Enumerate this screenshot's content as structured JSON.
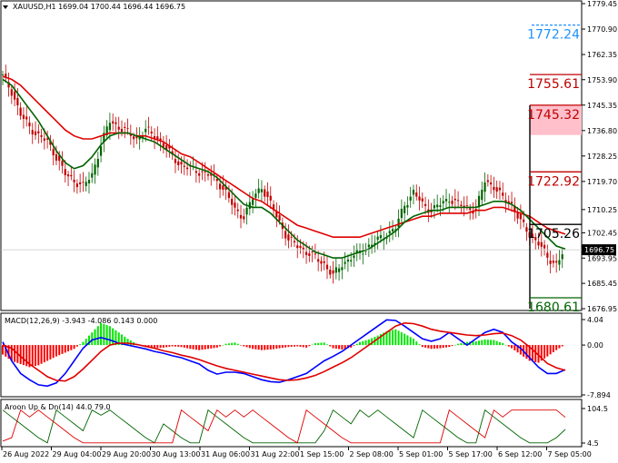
{
  "chart_data": [
    {
      "type": "candlestick",
      "title": "XAUUSD,H1  1699.04 1700.44 1696.44 1696.75",
      "ylim": [
        1676.95,
        1779.45
      ],
      "yticks": [
        "1779.45",
        "1770.90",
        "1762.35",
        "1753.90",
        "1745.35",
        "1736.80",
        "1728.25",
        "1719.70",
        "1710.25",
        "1702.45",
        "1693.95",
        "1685.45",
        "1676.95"
      ],
      "current_price": "1696.75",
      "xticks": [
        "26 Aug 2022",
        "29 Aug 04:00",
        "29 Aug 20:00",
        "30 Aug 13:00",
        "31 Aug 06:00",
        "31 Aug 22:00",
        "1 Sep 15:00",
        "2 Sep 08:00",
        "5 Sep 01:00",
        "5 Sep 17:00",
        "6 Sep 12:00",
        "7 Sep 05:00"
      ],
      "levels": [
        {
          "label": "1772.24",
          "value": 1772.24,
          "color": "#1e90ff"
        },
        {
          "label": "1755.61",
          "value": 1755.61,
          "color": "#c00000"
        },
        {
          "label": "1745.32",
          "value": 1745.32,
          "color": "#c00000"
        },
        {
          "label": "1722.92",
          "value": 1722.92,
          "color": "#c00000"
        },
        {
          "label": "1705.26",
          "value": 1705.26,
          "color": "#000000"
        },
        {
          "label": "1680.61",
          "value": 1680.61,
          "color": "#006400"
        }
      ],
      "close_path": [
        1755,
        1750,
        1742,
        1738,
        1735,
        1733,
        1728,
        1722,
        1720,
        1718,
        1722,
        1732,
        1740,
        1738,
        1736,
        1734,
        1737,
        1735,
        1732,
        1728,
        1725,
        1724,
        1723,
        1722,
        1720,
        1716,
        1710,
        1708,
        1714,
        1718,
        1712,
        1706,
        1700,
        1698,
        1696,
        1694,
        1692,
        1688,
        1692,
        1694,
        1696,
        1698,
        1700,
        1702,
        1704,
        1712,
        1716,
        1712,
        1710,
        1712,
        1714,
        1712,
        1711,
        1710,
        1720,
        1718,
        1714,
        1712,
        1706,
        1702,
        1699,
        1694,
        1692,
        1697
      ],
      "ma_fast": [
        1754,
        1752,
        1748,
        1744,
        1740,
        1735,
        1730,
        1726,
        1724,
        1725,
        1728,
        1732,
        1735,
        1736,
        1736,
        1735,
        1734,
        1733,
        1731,
        1729,
        1727,
        1725,
        1724,
        1723,
        1721,
        1718,
        1715,
        1712,
        1711,
        1711,
        1709,
        1706,
        1703,
        1700,
        1698,
        1696,
        1695,
        1694,
        1694,
        1695,
        1696,
        1697,
        1699,
        1701,
        1703,
        1706,
        1708,
        1709,
        1710,
        1710,
        1711,
        1711,
        1711,
        1711,
        1712,
        1713,
        1713,
        1712,
        1710,
        1707,
        1704,
        1701,
        1698,
        1697
      ],
      "ma_slow": [
        1755,
        1754,
        1752,
        1749,
        1746,
        1743,
        1740,
        1737,
        1735,
        1734,
        1734,
        1735,
        1736,
        1736,
        1736,
        1735,
        1735,
        1734,
        1733,
        1731,
        1729,
        1728,
        1726,
        1724,
        1722,
        1720,
        1718,
        1716,
        1714,
        1713,
        1711,
        1709,
        1707,
        1705,
        1704,
        1703,
        1702,
        1701,
        1701,
        1701,
        1701,
        1702,
        1703,
        1704,
        1705,
        1706,
        1707,
        1708,
        1708,
        1709,
        1709,
        1709,
        1709,
        1710,
        1710,
        1711,
        1711,
        1710,
        1709,
        1708,
        1706,
        1704,
        1703,
        1702
      ]
    },
    {
      "type": "bar",
      "title": "MACD(12,26,9) -3.943 -4.086 0.143 0.000",
      "ylim": [
        -7.894,
        4.04
      ],
      "yticks": [
        "4.04",
        "0.00",
        "-7.894"
      ],
      "histogram": [
        -1.5,
        -2.5,
        -3.0,
        -3.5,
        -3.2,
        -2.5,
        -1.8,
        -1.2,
        -0.6,
        0.5,
        2.0,
        3.5,
        3.0,
        2.0,
        1.0,
        0.2,
        -0.3,
        -0.5,
        -0.4,
        -0.2,
        -0.3,
        -0.6,
        -0.8,
        -0.6,
        -0.4,
        0.2,
        0.4,
        -0.2,
        -0.6,
        -0.8,
        -0.7,
        -0.5,
        -0.3,
        -0.2,
        -0.4,
        0.3,
        0.4,
        -0.5,
        -0.7,
        -0.4,
        0.5,
        0.9,
        1.5,
        2.2,
        2.5,
        1.8,
        1.0,
        -0.3,
        -0.6,
        -0.5,
        -0.3,
        0.2,
        0.5,
        0.6,
        0.9,
        0.8,
        0.3,
        -0.5,
        -1.5,
        -2.5,
        -2.8,
        -1.8,
        -0.8,
        0.1
      ],
      "macd_line": [
        0.5,
        -2.5,
        -4.5,
        -5.5,
        -6.3,
        -6.5,
        -6.0,
        -4.5,
        -2.5,
        -0.5,
        0.8,
        1.2,
        0.8,
        0.3,
        0.0,
        -0.3,
        -0.6,
        -1.0,
        -1.3,
        -1.7,
        -2.0,
        -2.5,
        -3.0,
        -4.0,
        -4.6,
        -4.3,
        -4.3,
        -4.5,
        -5.0,
        -5.5,
        -5.8,
        -5.9,
        -5.5,
        -5.0,
        -4.5,
        -3.5,
        -2.5,
        -1.8,
        -1.0,
        0.0,
        1.0,
        2.0,
        3.0,
        4.0,
        3.9,
        3.0,
        2.0,
        1.0,
        0.6,
        1.0,
        2.0,
        1.0,
        0.0,
        1.0,
        2.0,
        2.5,
        2.0,
        0.5,
        -0.5,
        -2.0,
        -3.5,
        -4.5,
        -4.5,
        -3.9
      ],
      "signal_line": [
        0.0,
        -0.5,
        -1.8,
        -3.0,
        -4.0,
        -5.0,
        -5.6,
        -5.7,
        -5.0,
        -3.8,
        -2.4,
        -1.0,
        0.0,
        0.3,
        0.3,
        0.1,
        -0.2,
        -0.5,
        -0.9,
        -1.2,
        -1.6,
        -1.9,
        -2.3,
        -2.8,
        -3.3,
        -3.7,
        -4.0,
        -4.3,
        -4.6,
        -4.9,
        -5.2,
        -5.5,
        -5.6,
        -5.5,
        -5.2,
        -4.8,
        -4.2,
        -3.5,
        -2.8,
        -2.0,
        -1.0,
        0.0,
        1.0,
        2.0,
        3.0,
        3.5,
        3.4,
        3.0,
        2.5,
        2.2,
        2.0,
        1.8,
        1.6,
        1.5,
        1.6,
        1.8,
        1.9,
        1.5,
        0.8,
        -0.3,
        -1.6,
        -2.9,
        -3.6,
        -4.0
      ]
    },
    {
      "type": "line",
      "title": "Aroon Up & Dn(14) 44.0 79.0",
      "ylim": [
        4.5,
        104.5
      ],
      "yticks": [
        "104.5",
        "4.5"
      ],
      "aroon_up": [
        100,
        80,
        60,
        40,
        20,
        5,
        100,
        80,
        60,
        40,
        100,
        85,
        100,
        80,
        60,
        40,
        20,
        5,
        60,
        40,
        20,
        5,
        5,
        100,
        80,
        60,
        40,
        20,
        5,
        5,
        5,
        5,
        5,
        5,
        5,
        5,
        40,
        100,
        80,
        60,
        100,
        80,
        100,
        80,
        60,
        40,
        20,
        100,
        80,
        60,
        40,
        20,
        5,
        5,
        100,
        80,
        60,
        40,
        20,
        5,
        5,
        5,
        20,
        44
      ],
      "aroon_down": [
        10,
        20,
        100,
        80,
        100,
        80,
        60,
        40,
        20,
        5,
        5,
        5,
        5,
        5,
        5,
        5,
        5,
        5,
        5,
        5,
        100,
        80,
        60,
        40,
        100,
        80,
        100,
        80,
        100,
        80,
        60,
        40,
        20,
        5,
        100,
        80,
        60,
        40,
        20,
        5,
        5,
        5,
        5,
        5,
        5,
        5,
        5,
        5,
        5,
        5,
        100,
        80,
        60,
        40,
        20,
        100,
        80,
        100,
        100,
        100,
        100,
        100,
        100,
        79
      ]
    }
  ]
}
